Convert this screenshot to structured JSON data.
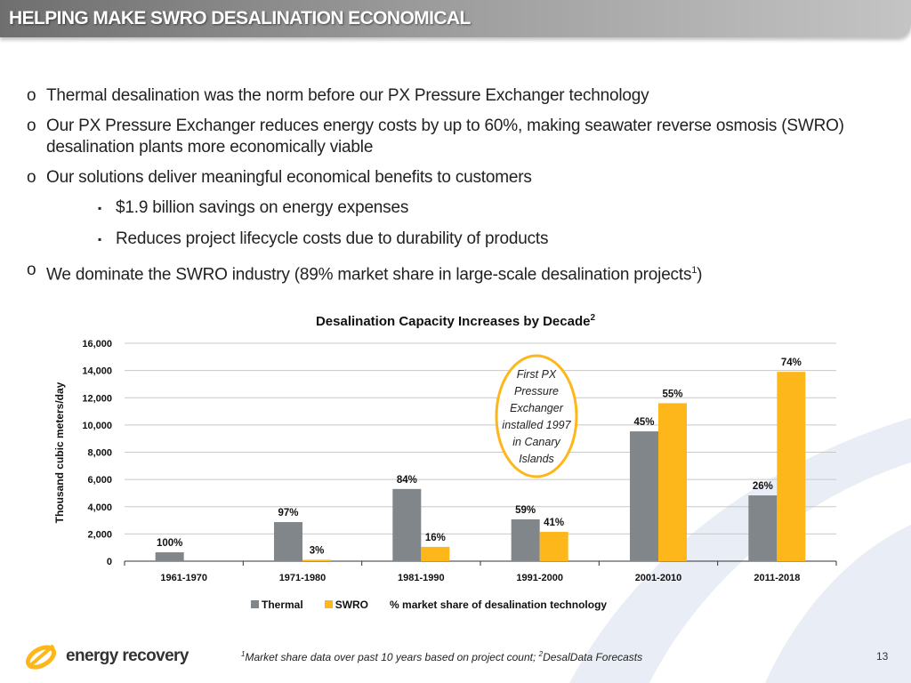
{
  "header": {
    "title": "HELPING MAKE SWRO DESALINATION ECONOMICAL"
  },
  "bullets": [
    {
      "text": "Thermal desalination was the norm before our PX Pressure Exchanger technology",
      "level": 1
    },
    {
      "text": "Our PX Pressure Exchanger reduces energy costs by up to 60%, making seawater reverse osmosis (SWRO) desalination plants more economically viable",
      "level": 1
    },
    {
      "text": "Our solutions deliver meaningful economical benefits to customers",
      "level": 1
    },
    {
      "text": "$1.9 billion savings on energy expenses",
      "level": 2
    },
    {
      "text": "Reduces project lifecycle costs due to durability of products",
      "level": 2
    },
    {
      "text": "We dominate the SWRO industry (89% market share in large-scale desalination projects",
      "level": 1,
      "sup": "1",
      "after": ")"
    }
  ],
  "bullet_markers": {
    "level1": "o",
    "level2": "▪"
  },
  "chart_data": {
    "type": "bar",
    "title": "Desalination Capacity Increases by Decade",
    "title_sup": "2",
    "xlabel": "",
    "ylabel": "Thousand cubic meters/day",
    "ylim": [
      0,
      16000
    ],
    "yticks": [
      "0",
      "2,000",
      "4,000",
      "6,000",
      "8,000",
      "10,000",
      "12,000",
      "14,000",
      "16,000"
    ],
    "grid": true,
    "categories": [
      "1961-1970",
      "1971-1980",
      "1981-1990",
      "1991-2000",
      "2001-2010",
      "2011-2018"
    ],
    "series": [
      {
        "name": "Thermal",
        "color": "#808689",
        "values": [
          650,
          2870,
          5300,
          3070,
          9530,
          4830
        ],
        "labels": [
          "100%",
          "97%",
          "84%",
          "59%",
          "45%",
          "26%"
        ]
      },
      {
        "name": "SWRO",
        "color": "#FDB71A",
        "values": [
          0,
          100,
          1050,
          2150,
          11600,
          13900
        ],
        "labels": [
          "",
          "3%",
          "16%",
          "41%",
          "55%",
          "74%"
        ]
      }
    ],
    "legend_position": "bottom",
    "legend_note": "% market share of desalination technology",
    "annotation": [
      "First PX",
      "Pressure",
      "Exchanger",
      "installed 1997",
      "in Canary",
      "Islands"
    ]
  },
  "footer": {
    "logo_text": "energy recovery",
    "footnote_sup1": "1",
    "footnote_part1": "Market share data over past 10 years based on project count; ",
    "footnote_sup2": "2",
    "footnote_part2": "DesalData Forecasts",
    "page_number": "13"
  }
}
